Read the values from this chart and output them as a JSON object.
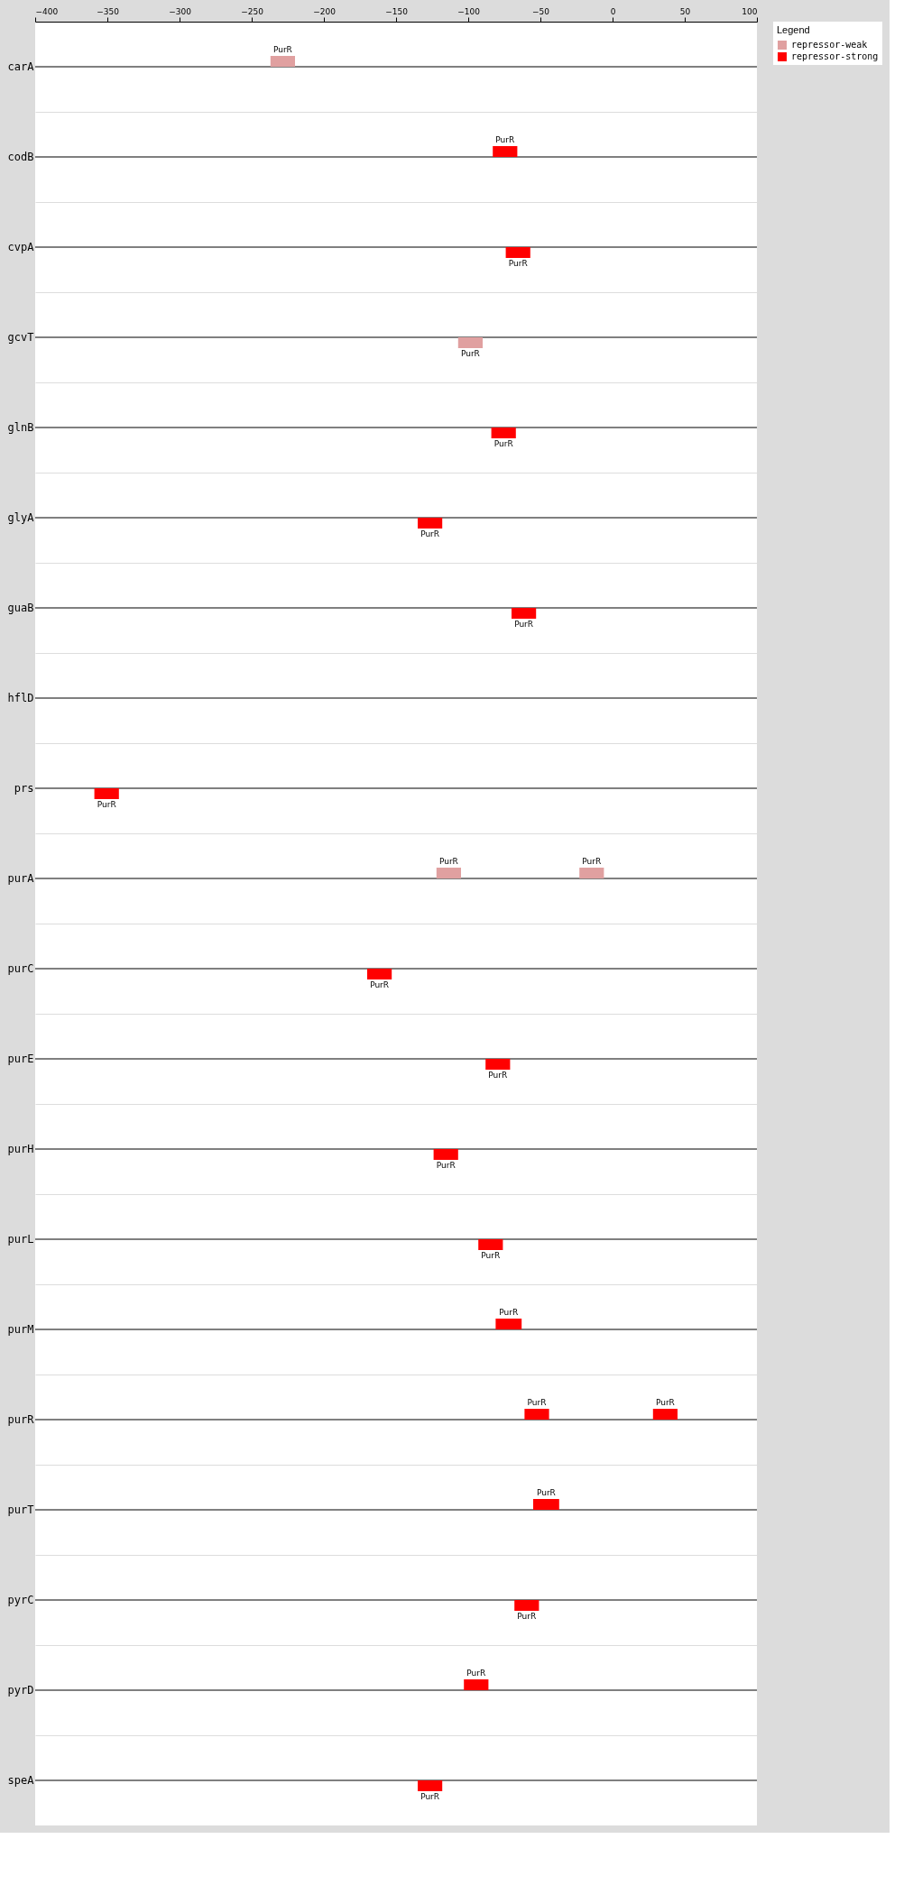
{
  "chart_data": {
    "type": "bar",
    "orientation": "horizontal",
    "legend_title": "Legend",
    "legend": "right",
    "grid": "y",
    "categories": [
      "carA",
      "codB",
      "cvpA",
      "gcvT",
      "glnB",
      "glyA",
      "guaB",
      "hflD",
      "prs",
      "purA",
      "purC",
      "purE",
      "purH",
      "purL",
      "purM",
      "purR",
      "purT",
      "pyrC",
      "pyrD",
      "speA"
    ],
    "xlim": [
      -400,
      100
    ],
    "xticks": [
      -400,
      -350,
      -300,
      -250,
      -200,
      -150,
      -100,
      -50,
      0,
      50,
      100
    ],
    "series": [
      {
        "name": "repressor-weak",
        "color": "#e0a0a0",
        "base": [
          -237,
          null,
          null,
          null,
          null,
          null,
          null,
          null,
          null,
          -122,
          null,
          null,
          null,
          null,
          null,
          null,
          null,
          null,
          null,
          null
        ],
        "values": [
          17,
          null,
          null,
          null,
          null,
          null,
          null,
          null,
          null,
          17,
          null,
          null,
          null,
          null,
          null,
          null,
          null,
          null,
          null,
          null
        ],
        "value_labels": [
          "PurR",
          null,
          null,
          null,
          null,
          null,
          null,
          null,
          null,
          "PurR",
          null,
          null,
          null,
          null,
          null,
          null,
          null,
          null,
          null,
          null
        ]
      },
      {
        "color": "#e0a0a0",
        "base": [
          null,
          null,
          null,
          null,
          null,
          null,
          null,
          null,
          null,
          -23,
          null,
          null,
          null,
          null,
          null,
          null,
          null,
          null,
          null,
          null
        ],
        "values": [
          null,
          null,
          null,
          null,
          null,
          null,
          null,
          null,
          null,
          17,
          null,
          null,
          null,
          null,
          null,
          null,
          null,
          null,
          null,
          null
        ],
        "value_labels": [
          null,
          null,
          null,
          null,
          null,
          null,
          null,
          null,
          null,
          "PurR",
          null,
          null,
          null,
          null,
          null,
          null,
          null,
          null,
          null,
          null
        ]
      },
      {
        "color": "#e0a0a0",
        "base": [
          null,
          null,
          null,
          -107,
          null,
          null,
          null,
          null,
          null,
          null,
          null,
          null,
          null,
          null,
          null,
          null,
          null,
          null,
          null,
          null
        ],
        "values": [
          null,
          null,
          null,
          17,
          null,
          null,
          null,
          null,
          null,
          null,
          null,
          null,
          null,
          null,
          null,
          null,
          null,
          null,
          null,
          null
        ],
        "value_labels": [
          null,
          null,
          null,
          "PurR",
          null,
          null,
          null,
          null,
          null,
          null,
          null,
          null,
          null,
          null,
          null,
          null,
          null,
          null,
          null,
          null
        ]
      },
      {
        "name": "repressor-strong",
        "color": "#ff0000",
        "base": [
          null,
          -83,
          null,
          null,
          null,
          null,
          null,
          null,
          null,
          null,
          null,
          null,
          null,
          null,
          -81,
          -61,
          -55,
          null,
          -103,
          null
        ],
        "values": [
          null,
          17,
          null,
          null,
          null,
          null,
          null,
          null,
          null,
          null,
          null,
          null,
          null,
          null,
          18,
          17,
          18,
          null,
          17,
          null
        ],
        "value_labels": [
          null,
          "PurR",
          null,
          null,
          null,
          null,
          null,
          null,
          null,
          null,
          null,
          null,
          null,
          null,
          "PurR",
          "PurR",
          "PurR",
          null,
          "PurR",
          null
        ]
      },
      {
        "color": "#ff0000",
        "base": [
          null,
          null,
          null,
          null,
          null,
          null,
          null,
          null,
          null,
          null,
          null,
          null,
          null,
          null,
          null,
          28,
          null,
          null,
          null,
          null
        ],
        "values": [
          null,
          null,
          null,
          null,
          null,
          null,
          null,
          null,
          null,
          null,
          null,
          null,
          null,
          null,
          null,
          17,
          null,
          null,
          null,
          null
        ],
        "value_labels": [
          null,
          null,
          null,
          null,
          null,
          null,
          null,
          null,
          null,
          null,
          null,
          null,
          null,
          null,
          null,
          "PurR",
          null,
          null,
          null,
          null
        ]
      },
      {
        "color": "#ff0000",
        "base": [
          null,
          null,
          -74,
          null,
          -84,
          -135,
          -70,
          null,
          -359,
          null,
          -170,
          -88,
          -124,
          -93,
          null,
          null,
          null,
          -68,
          null,
          -135
        ],
        "values": [
          null,
          null,
          17,
          null,
          17,
          17,
          17,
          null,
          17,
          null,
          17,
          17,
          17,
          17,
          null,
          null,
          null,
          17,
          null,
          17
        ],
        "value_labels": [
          null,
          null,
          "PurR",
          null,
          "PurR",
          "PurR",
          "PurR",
          null,
          "PurR",
          null,
          "PurR",
          "PurR",
          "PurR",
          "PurR",
          null,
          null,
          null,
          "PurR",
          null,
          "PurR"
        ]
      }
    ]
  }
}
